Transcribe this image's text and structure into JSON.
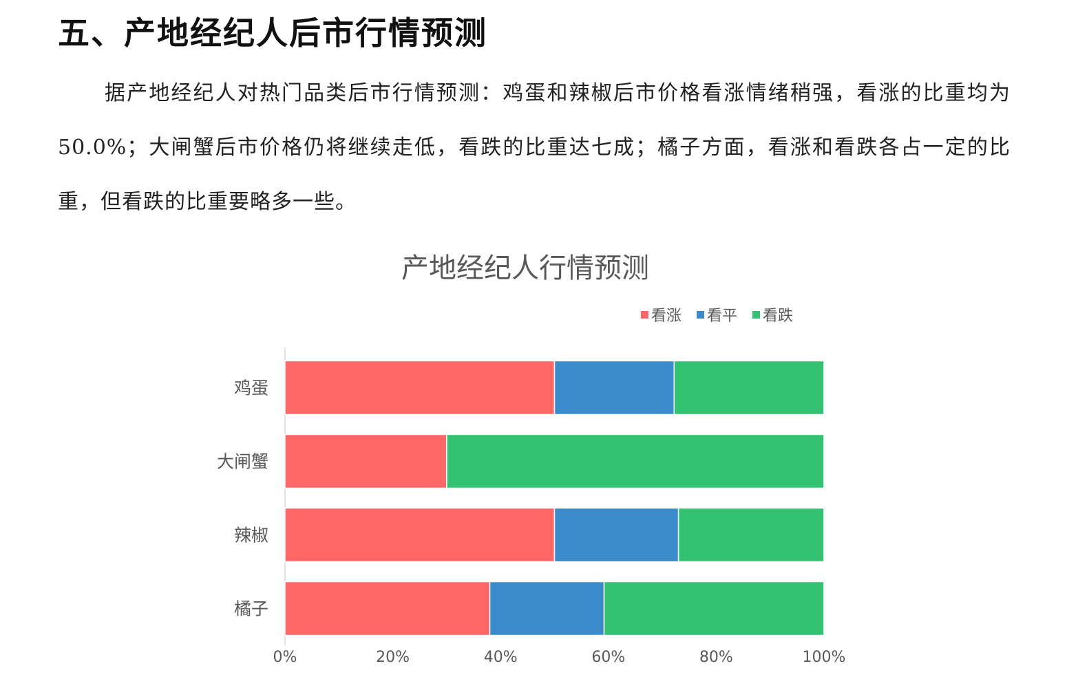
{
  "section_heading": "五、产地经纪人后市行情预测",
  "paragraph": "据产地经纪人对热门品类后市行情预测：鸡蛋和辣椒后市价格看涨情绪稍强，看涨的比重均为 50.0%；大闸蟹后市价格仍将继续走低，看跌的比重达七成；橘子方面，看涨和看跌各占一定的比重，但看跌的比重要略多一些。",
  "chart_data": {
    "type": "bar",
    "orientation": "horizontal",
    "stacked": true,
    "title": "产地经纪人行情预测",
    "categories": [
      "鸡蛋",
      "大闸蟹",
      "辣椒",
      "橘子"
    ],
    "series": [
      {
        "name": "看涨",
        "color": "#ff6666",
        "values": [
          50.0,
          30.0,
          50.0,
          38.0
        ]
      },
      {
        "name": "看平",
        "color": "#3a8bcc",
        "values": [
          22.2,
          0.0,
          23.0,
          21.2
        ]
      },
      {
        "name": "看跌",
        "color": "#33c272",
        "values": [
          27.8,
          70.0,
          27.0,
          40.8
        ]
      }
    ],
    "xlim": [
      0,
      100
    ],
    "xticks": [
      "0%",
      "20%",
      "40%",
      "60%",
      "80%",
      "100%"
    ],
    "legend_position": "top-right",
    "grid": false
  }
}
